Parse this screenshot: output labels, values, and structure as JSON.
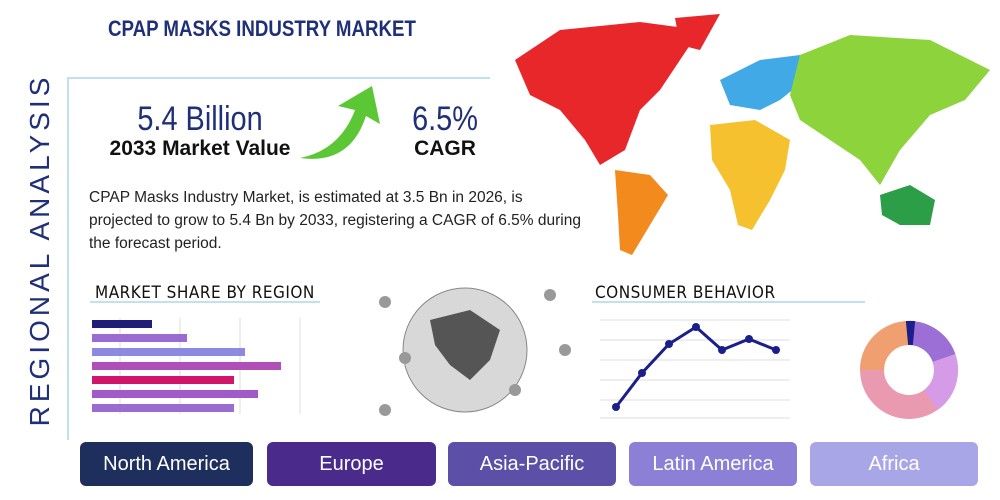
{
  "header": {
    "title": "CPAP MASKS INDUSTRY MARKET",
    "side_label": "REGIONAL ANALYSIS"
  },
  "stats": [
    {
      "value": "5.4 Billion",
      "label": "2033 Market Value"
    },
    {
      "value": "6.5%",
      "label": "CAGR"
    }
  ],
  "description": "CPAP Masks Industry Market, is estimated at 3.5 Bn in 2026, is projected to grow to 5.4 Bn by 2033, registering a CAGR of 6.5% during the forecast period.",
  "sections": {
    "market_share": "MARKET SHARE BY REGION",
    "consumer": "CONSUMER BEHAVIOR"
  },
  "regions": [
    "North America",
    "Europe",
    "Asia-Pacific",
    "Latin America",
    "Africa"
  ]
}
